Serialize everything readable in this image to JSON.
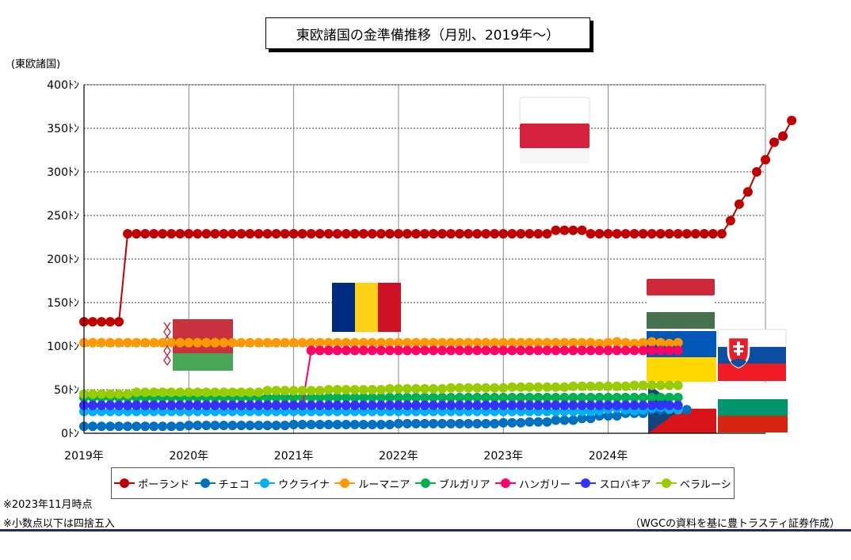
{
  "chart_data": {
    "type": "line",
    "title": "東欧諸国の金準備推移（月別、2019年～）",
    "ylabel": "(東欧諸国)",
    "ylim": [
      0,
      400
    ],
    "y_ticks": [
      "0ﾄﾝ",
      "50ﾄﾝ",
      "100ﾄﾝ",
      "150ﾄﾝ",
      "200ﾄﾝ",
      "250ﾄﾝ",
      "300ﾄﾝ",
      "350ﾄﾝ",
      "400ﾄﾝ"
    ],
    "y_tick_values": [
      0,
      50,
      100,
      150,
      200,
      250,
      300,
      350,
      400
    ],
    "x_start": "2019-01",
    "x_end": "2025-07",
    "x_ticks": [
      "2019年",
      "2020年",
      "2021年",
      "2022年",
      "2023年",
      "2024年"
    ],
    "grid": true,
    "legend_position": "bottom",
    "series": [
      {
        "name": "ポーランド",
        "color": "#c00000",
        "start": "2019-01",
        "segments": [
          [
            5,
            128
          ],
          [
            13,
            229
          ],
          [
            24,
            229
          ],
          [
            12,
            229
          ],
          [
            4,
            233
          ],
          [
            4,
            229
          ],
          [
            12,
            229
          ],
          [
            1,
            244
          ],
          [
            1,
            263
          ],
          [
            1,
            277
          ],
          [
            1,
            300
          ],
          [
            1,
            314
          ],
          [
            1,
            334
          ],
          [
            1,
            341
          ],
          [
            1,
            359
          ]
        ]
      },
      {
        "name": "チェコ",
        "color": "#0070c0",
        "start": "2019-01",
        "segments": [
          [
            12,
            8
          ],
          [
            12,
            9
          ],
          [
            12,
            10
          ],
          [
            12,
            11
          ],
          [
            3,
            12
          ],
          [
            3,
            13
          ],
          [
            3,
            15
          ],
          [
            2,
            17
          ],
          [
            3,
            20
          ],
          [
            3,
            23
          ],
          [
            5,
            27
          ]
        ]
      },
      {
        "name": "ウクライナ",
        "color": "#00b0f0",
        "start": "2019-01",
        "segments": [
          [
            59,
            25
          ],
          [
            1,
            26
          ],
          [
            1,
            28
          ],
          [
            1,
            29
          ],
          [
            1,
            27
          ],
          [
            1,
            26
          ],
          [
            1,
            27
          ],
          [
            1,
            29
          ],
          [
            1,
            30
          ],
          [
            1,
            28
          ],
          [
            1,
            27
          ]
        ]
      },
      {
        "name": "ルーマニア",
        "color": "#ff9900",
        "start": "2019-01",
        "segments": [
          [
            59,
            104
          ],
          [
            1,
            103
          ],
          [
            1,
            104
          ],
          [
            1,
            105
          ],
          [
            1,
            104
          ],
          [
            1,
            103
          ],
          [
            1,
            104
          ],
          [
            1,
            105
          ],
          [
            1,
            104
          ],
          [
            1,
            103
          ],
          [
            1,
            104
          ]
        ]
      },
      {
        "name": "ブルガリア",
        "color": "#00b050",
        "start": "2019-01",
        "segments": [
          [
            69,
            41
          ]
        ]
      },
      {
        "name": "ハンガリー",
        "color": "#ff0066",
        "start": "2019-01",
        "segments": [
          [
            26,
            32
          ],
          [
            43,
            95
          ]
        ]
      },
      {
        "name": "スロバキア",
        "color": "#3333ff",
        "start": "2019-01",
        "segments": [
          [
            69,
            32
          ]
        ]
      },
      {
        "name": "ベラルーシ",
        "color": "#99cc00",
        "start": "2019-01",
        "segments": [
          [
            6,
            45
          ],
          [
            15,
            47
          ],
          [
            7,
            49
          ],
          [
            7,
            50
          ],
          [
            7,
            51
          ],
          [
            7,
            52
          ],
          [
            7,
            53
          ],
          [
            7,
            54
          ],
          [
            6,
            55
          ]
        ]
      }
    ]
  },
  "notes": [
    "※2023年11月時点",
    "※小数点以下は四捨五入"
  ],
  "source": "（WGCの資料を基に豊トラスティ証券作成）"
}
